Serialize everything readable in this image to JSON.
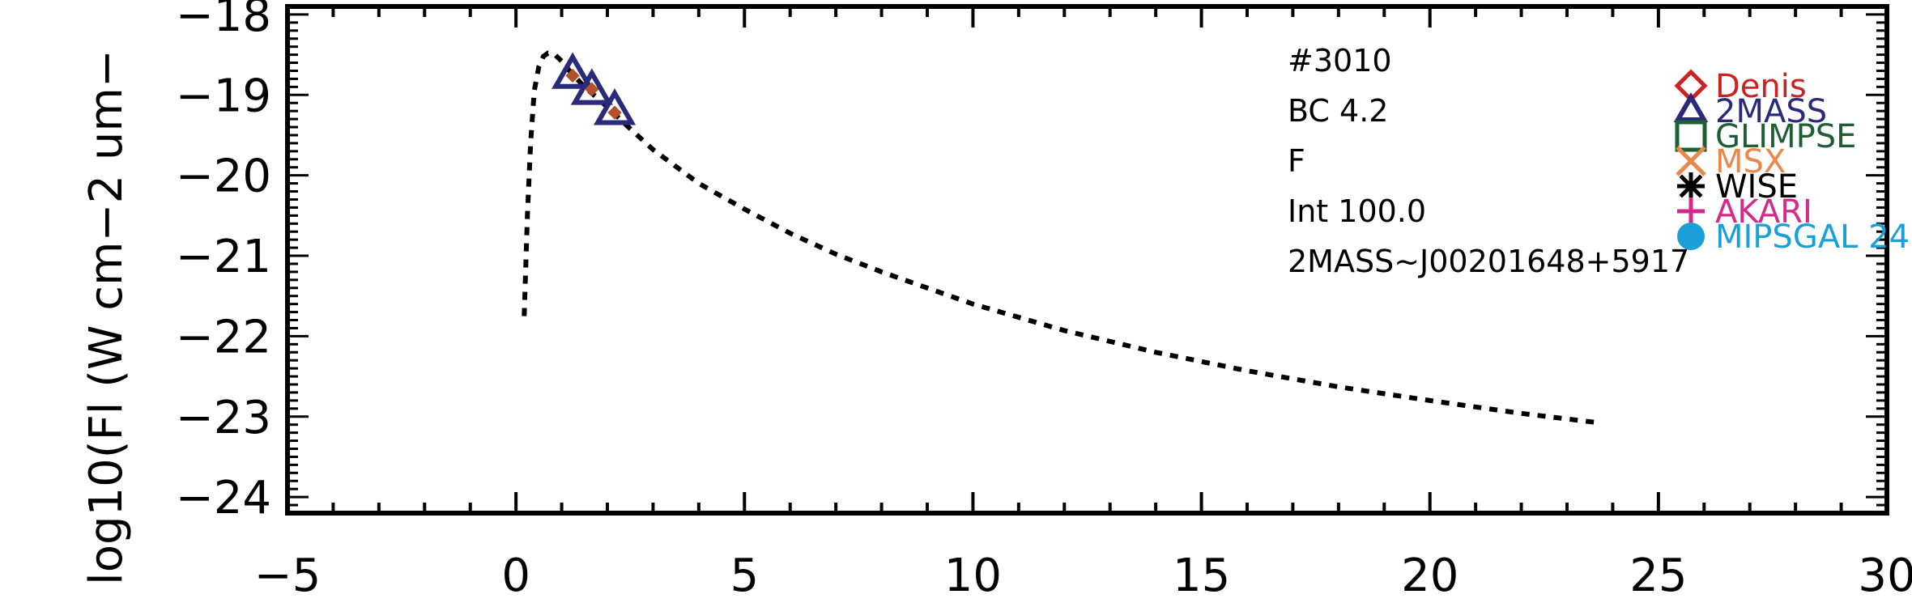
{
  "chart_data": {
    "type": "scatter",
    "title": "",
    "xlabel": "",
    "ylabel": "log10(Fl (W cm−2 um−",
    "xlim": [
      -5,
      30
    ],
    "ylim": [
      -24.2,
      -17.9
    ],
    "x_ticks": [
      -5,
      0,
      5,
      10,
      15,
      20,
      25,
      30
    ],
    "x_tick_labels": [
      "−5",
      "0",
      "5",
      "10",
      "15",
      "20",
      "25",
      "30"
    ],
    "y_ticks": [
      -18,
      -19,
      -20,
      -21,
      -22,
      -23,
      -24
    ],
    "y_tick_labels": [
      "−18",
      "−19",
      "−20",
      "−21",
      "−22",
      "−23",
      "−24"
    ],
    "grid": false,
    "annotations": [
      "#3010",
      "BC 4.2",
      "F",
      "Int 100.0",
      "2MASS~J00201648+5917"
    ],
    "model_curve": {
      "style": "dotted",
      "color": "#000000",
      "x": [
        0.18,
        0.25,
        0.32,
        0.4,
        0.5,
        0.6,
        0.7,
        0.85,
        1.0,
        1.2,
        1.5,
        2.0,
        2.5,
        3.0,
        4.0,
        5.0,
        6.0,
        7.0,
        8.0,
        10.0,
        12.0,
        14.0,
        16.0,
        18.0,
        20.0,
        22.0,
        23.6
      ],
      "y": [
        -21.75,
        -20.5,
        -19.6,
        -18.95,
        -18.65,
        -18.52,
        -18.48,
        -18.5,
        -18.58,
        -18.72,
        -18.9,
        -19.15,
        -19.42,
        -19.68,
        -20.1,
        -20.42,
        -20.72,
        -20.98,
        -21.2,
        -21.6,
        -21.93,
        -22.2,
        -22.43,
        -22.63,
        -22.8,
        -22.96,
        -23.07
      ]
    },
    "series": [
      {
        "name": "Denis",
        "marker": "diamond",
        "color": "#cc2222",
        "x": [],
        "y": []
      },
      {
        "name": "2MASS",
        "marker": "triangle",
        "color": "#2a2a7a",
        "x": [
          1.24,
          1.66,
          2.16
        ],
        "y": [
          -18.75,
          -18.95,
          -19.2
        ]
      },
      {
        "name": "GLIMPSE",
        "marker": "square",
        "color": "#1e5e32",
        "x": [],
        "y": []
      },
      {
        "name": "MSX",
        "marker": "x",
        "color": "#e8884a",
        "x": [],
        "y": []
      },
      {
        "name": "WISE",
        "marker": "asterisk",
        "color": "#000000",
        "x": [],
        "y": []
      },
      {
        "name": "AKARI",
        "marker": "plus",
        "color": "#d42a8a",
        "x": [],
        "y": []
      },
      {
        "name": "MIPSGAL 24",
        "marker": "circle",
        "color": "#1aa0d8",
        "x": [],
        "y": []
      }
    ],
    "model_points": {
      "marker": "diamond-filled",
      "color": "#b5502c",
      "x": [
        1.24,
        1.66,
        2.16
      ],
      "y": [
        -18.76,
        -18.93,
        -19.22
      ]
    },
    "legend_position": "right"
  }
}
